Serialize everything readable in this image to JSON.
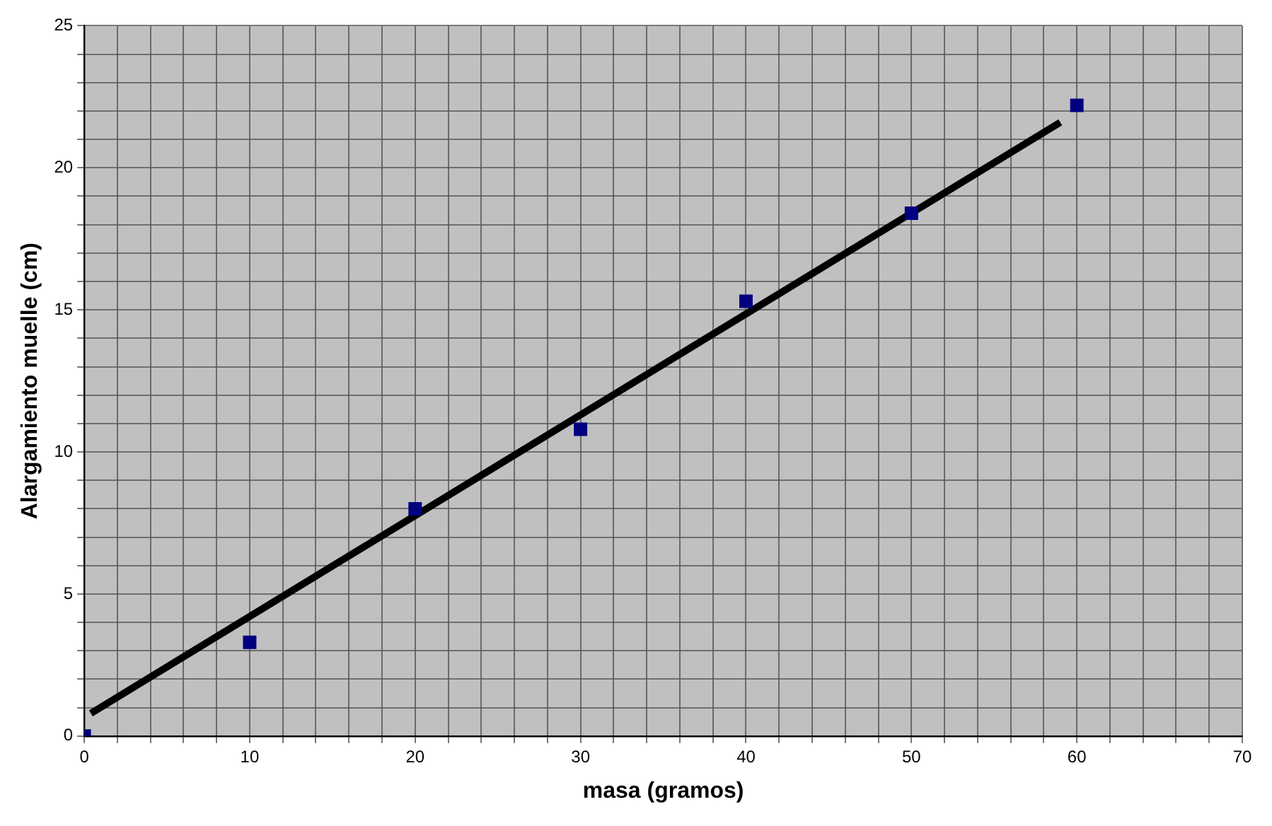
{
  "chart_data": {
    "type": "scatter",
    "xlabel": "masa (gramos)",
    "ylabel": "Alargamiento muelle (cm)",
    "xlim": [
      0,
      70
    ],
    "ylim": [
      0,
      25
    ],
    "xticks": [
      0,
      {
        "value": 2,
        "label": null
      },
      {
        "value": 4,
        "label": null
      },
      {
        "value": 6,
        "label": null
      },
      {
        "value": 8,
        "label": null
      },
      10,
      {
        "value": 12,
        "label": null
      },
      {
        "value": 14,
        "label": null
      },
      {
        "value": 16,
        "label": null
      },
      {
        "value": 18,
        "label": null
      },
      20,
      {
        "value": 22,
        "label": null
      },
      {
        "value": 24,
        "label": null
      },
      {
        "value": 26,
        "label": null
      },
      {
        "value": 28,
        "label": null
      },
      30,
      {
        "value": 32,
        "label": null
      },
      {
        "value": 34,
        "label": null
      },
      {
        "value": 36,
        "label": null
      },
      {
        "value": 38,
        "label": null
      },
      40,
      {
        "value": 42,
        "label": null
      },
      {
        "value": 44,
        "label": null
      },
      {
        "value": 46,
        "label": null
      },
      {
        "value": 48,
        "label": null
      },
      50,
      {
        "value": 52,
        "label": null
      },
      {
        "value": 54,
        "label": null
      },
      {
        "value": 56,
        "label": null
      },
      {
        "value": 58,
        "label": null
      },
      60,
      {
        "value": 62,
        "label": null
      },
      {
        "value": 64,
        "label": null
      },
      {
        "value": 66,
        "label": null
      },
      {
        "value": 68,
        "label": null
      },
      70
    ],
    "yticks": [
      0,
      {
        "value": 1,
        "label": null
      },
      {
        "value": 2,
        "label": null
      },
      {
        "value": 3,
        "label": null
      },
      {
        "value": 4,
        "label": null
      },
      5,
      {
        "value": 6,
        "label": null
      },
      {
        "value": 7,
        "label": null
      },
      {
        "value": 8,
        "label": null
      },
      {
        "value": 9,
        "label": null
      },
      10,
      {
        "value": 11,
        "label": null
      },
      {
        "value": 12,
        "label": null
      },
      {
        "value": 13,
        "label": null
      },
      {
        "value": 14,
        "label": null
      },
      15,
      {
        "value": 16,
        "label": null
      },
      {
        "value": 17,
        "label": null
      },
      {
        "value": 18,
        "label": null
      },
      {
        "value": 19,
        "label": null
      },
      20,
      {
        "value": 21,
        "label": null
      },
      {
        "value": 22,
        "label": null
      },
      {
        "value": 23,
        "label": null
      },
      {
        "value": 24,
        "label": null
      },
      25
    ],
    "grid": true,
    "legend": false,
    "series": [
      {
        "type": "scatter",
        "color": "#000080",
        "marker": "square",
        "x": [
          0,
          10,
          20,
          30,
          40,
          50,
          60
        ],
        "values": [
          0,
          3.3,
          8.0,
          10.8,
          15.3,
          18.4,
          22.2
        ]
      },
      {
        "type": "line",
        "color": "#000000",
        "marker": "none",
        "line_style": "solid",
        "x": [
          0.4,
          59
        ],
        "values": [
          0.8,
          21.6
        ]
      }
    ]
  }
}
